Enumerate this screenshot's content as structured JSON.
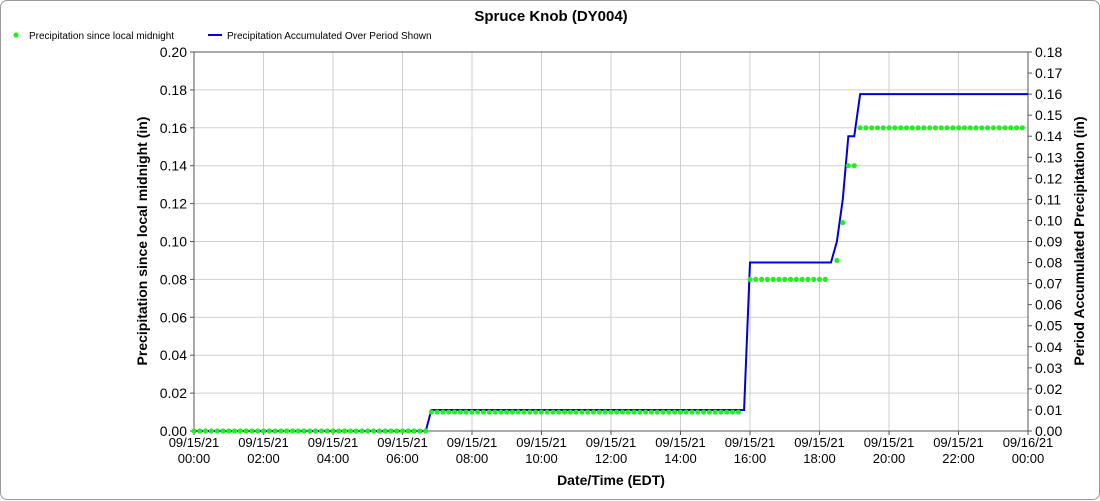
{
  "chart_data": {
    "type": "line",
    "title": "Spruce Knob (DY004)",
    "xlabel": "Date/Time (EDT)",
    "ylabel": "Precipitation since local midnight (in)",
    "y2label": "Period Accumulated Precipitation (in)",
    "legend_position": "top-left",
    "grid": true,
    "x_ticks": [
      {
        "hour": 0,
        "date": "09/15/21",
        "time": "00:00"
      },
      {
        "hour": 2,
        "date": "09/15/21",
        "time": "02:00"
      },
      {
        "hour": 4,
        "date": "09/15/21",
        "time": "04:00"
      },
      {
        "hour": 6,
        "date": "09/15/21",
        "time": "06:00"
      },
      {
        "hour": 8,
        "date": "09/15/21",
        "time": "08:00"
      },
      {
        "hour": 10,
        "date": "09/15/21",
        "time": "10:00"
      },
      {
        "hour": 12,
        "date": "09/15/21",
        "time": "12:00"
      },
      {
        "hour": 14,
        "date": "09/15/21",
        "time": "14:00"
      },
      {
        "hour": 16,
        "date": "09/15/21",
        "time": "16:00"
      },
      {
        "hour": 18,
        "date": "09/15/21",
        "time": "18:00"
      },
      {
        "hour": 20,
        "date": "09/15/21",
        "time": "20:00"
      },
      {
        "hour": 22,
        "date": "09/15/21",
        "time": "22:00"
      },
      {
        "hour": 24,
        "date": "09/16/21",
        "time": "00:00"
      }
    ],
    "xlim_hours": [
      0,
      24
    ],
    "ylim": [
      0,
      0.2
    ],
    "y_ticks": [
      "0.00",
      "0.02",
      "0.04",
      "0.06",
      "0.08",
      "0.10",
      "0.12",
      "0.14",
      "0.16",
      "0.18",
      "0.20"
    ],
    "y2lim": [
      0,
      0.18
    ],
    "y2_ticks": [
      "0.00",
      "0.01",
      "0.02",
      "0.03",
      "0.04",
      "0.05",
      "0.06",
      "0.07",
      "0.08",
      "0.09",
      "0.10",
      "0.11",
      "0.12",
      "0.13",
      "0.14",
      "0.15",
      "0.16",
      "0.17",
      "0.18"
    ],
    "series": [
      {
        "name": "Precipitation since local midnight",
        "type": "scatter",
        "axis": "left",
        "color": "#22ee22",
        "segments": [
          {
            "from_hour": 0,
            "to_hour": 6.67,
            "step_minutes": 10,
            "value": 0.0
          },
          {
            "from_hour": 6.83,
            "to_hour": 15.67,
            "step_minutes": 10,
            "value": 0.01
          },
          {
            "from_hour": 16.0,
            "to_hour": 18.33,
            "step_minutes": 10,
            "value": 0.08
          }
        ],
        "points": [
          {
            "hour": 18.5,
            "value": 0.09
          },
          {
            "hour": 18.67,
            "value": 0.11
          },
          {
            "hour": 18.83,
            "value": 0.14
          },
          {
            "hour": 19.0,
            "value": 0.14
          }
        ],
        "tail": {
          "from_hour": 19.17,
          "to_hour": 24.0,
          "step_minutes": 10,
          "value": 0.16
        }
      },
      {
        "name": "Precipitation Accumulated Over Period Shown",
        "type": "line",
        "axis": "right",
        "color": "#0000dd",
        "points": [
          {
            "hour": 0,
            "value": 0.0
          },
          {
            "hour": 6.67,
            "value": 0.0
          },
          {
            "hour": 6.83,
            "value": 0.01
          },
          {
            "hour": 15.83,
            "value": 0.01
          },
          {
            "hour": 16.0,
            "value": 0.08
          },
          {
            "hour": 18.33,
            "value": 0.08
          },
          {
            "hour": 18.5,
            "value": 0.09
          },
          {
            "hour": 18.67,
            "value": 0.11
          },
          {
            "hour": 18.83,
            "value": 0.14
          },
          {
            "hour": 19.0,
            "value": 0.14
          },
          {
            "hour": 19.17,
            "value": 0.16
          },
          {
            "hour": 24.0,
            "value": 0.16
          }
        ]
      }
    ]
  }
}
